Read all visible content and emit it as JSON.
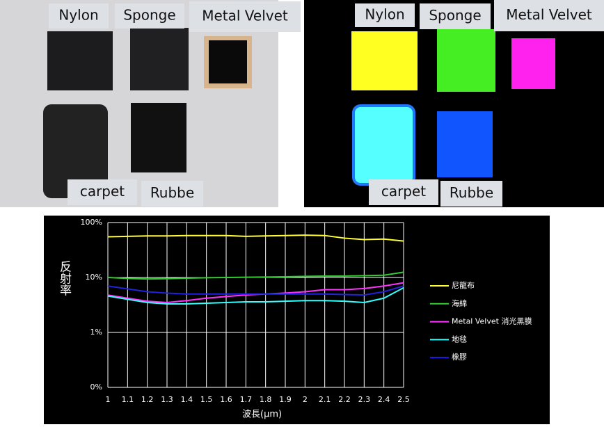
{
  "panels": [
    {
      "labels": [
        "Nylon",
        "Sponge",
        "Metal  Velvet",
        "carpet",
        "Rubbe"
      ]
    },
    {
      "labels": [
        "Nylon",
        "Sponge",
        "Metal  Velvet",
        "carpet",
        "Rubbe"
      ]
    }
  ],
  "chart_data": {
    "type": "line",
    "y_label": "反射率",
    "x_label": "波長(μm)",
    "log_y": true,
    "grid": true,
    "x": [
      1,
      1.1,
      1.2,
      1.3,
      1.4,
      1.5,
      1.6,
      1.7,
      1.8,
      1.9,
      2,
      2.1,
      2.2,
      2.3,
      2.4,
      2.5
    ],
    "xlim": [
      1,
      2.5
    ],
    "xticks": [
      1,
      1.1,
      1.2,
      1.3,
      1.4,
      1.5,
      1.6,
      1.7,
      1.8,
      1.9,
      2,
      2.1,
      2.2,
      2.3,
      2.4,
      2.5
    ],
    "ylim": [
      0.1,
      100
    ],
    "yticks": [
      {
        "value": 0.1,
        "label": "0%"
      },
      {
        "value": 1,
        "label": "1%"
      },
      {
        "value": 10,
        "label": "10%"
      },
      {
        "value": 100,
        "label": "100%"
      }
    ],
    "series": [
      {
        "name": "尼龍布",
        "color": "#ffff33",
        "values": [
          55,
          56,
          57,
          57,
          58,
          58,
          58,
          56,
          57,
          58,
          59,
          58,
          52,
          49,
          50,
          46
        ]
      },
      {
        "name": "海綿",
        "color": "#33cc33",
        "values": [
          10,
          9.6,
          9.4,
          9.5,
          9.7,
          9.9,
          10,
          10.1,
          10.2,
          10.3,
          10.5,
          10.6,
          10.6,
          10.8,
          11,
          12.5
        ]
      },
      {
        "name": "Metal Velvet 消光黑膜",
        "color": "#ff33ff",
        "values": [
          4.8,
          4.2,
          3.7,
          3.5,
          3.8,
          4.2,
          4.5,
          4.8,
          5,
          5.2,
          5.5,
          6,
          6,
          6.3,
          7,
          8
        ]
      },
      {
        "name": "地毯",
        "color": "#33ffff",
        "values": [
          4.6,
          4,
          3.5,
          3.3,
          3.3,
          3.4,
          3.5,
          3.6,
          3.6,
          3.7,
          3.8,
          3.8,
          3.7,
          3.5,
          4.2,
          6.5
        ]
      },
      {
        "name": "橡膠",
        "color": "#2222dd",
        "values": [
          7,
          6.2,
          5.5,
          5.2,
          5,
          5,
          5,
          5,
          5,
          5,
          5,
          5,
          4.9,
          4.8,
          5.5,
          7
        ]
      }
    ]
  }
}
